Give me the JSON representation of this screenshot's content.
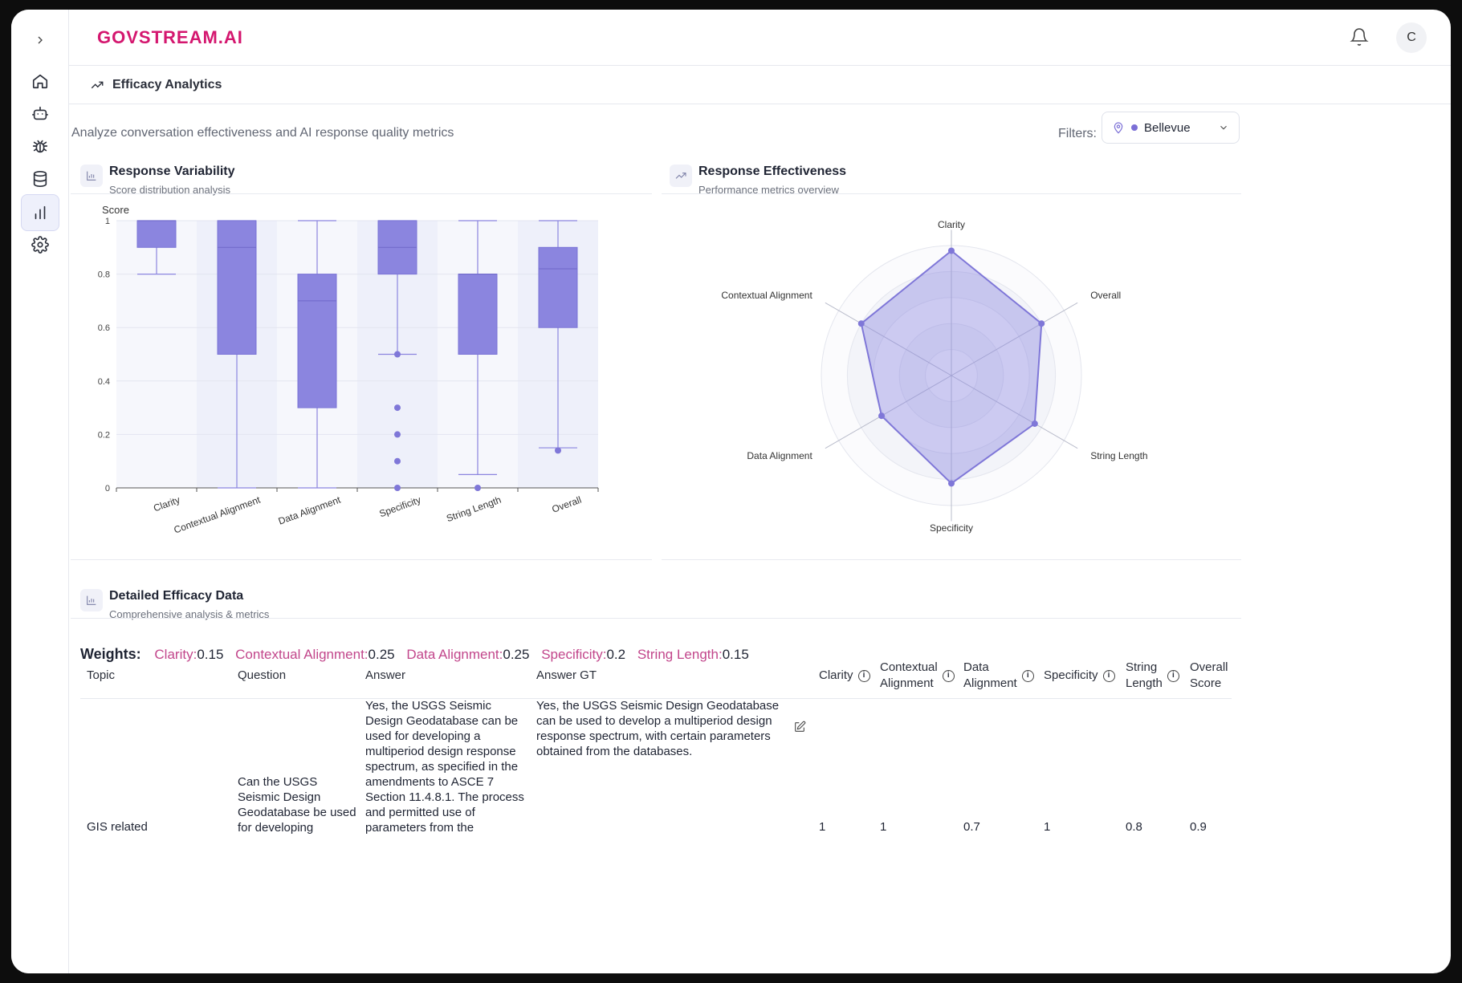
{
  "app": {
    "logo": "GOVSTREAM.AI",
    "avatar_initial": "C"
  },
  "sidebar": {
    "items": [
      {
        "icon": "home-icon"
      },
      {
        "icon": "bot-icon"
      },
      {
        "icon": "bug-icon"
      },
      {
        "icon": "database-icon"
      },
      {
        "icon": "bar-chart-icon",
        "active": true
      },
      {
        "icon": "gear-icon"
      }
    ]
  },
  "breadcrumb": {
    "title": "Efficacy Analytics"
  },
  "page": {
    "subtitle": "Analyze conversation effectiveness and AI response quality metrics",
    "filters_label": "Filters:",
    "filter_value": "Bellevue"
  },
  "variability_card": {
    "title": "Response Variability",
    "subtitle": "Score distribution analysis"
  },
  "effectiveness_card": {
    "title": "Response Effectiveness",
    "subtitle": "Performance metrics overview"
  },
  "detail_card": {
    "title": "Detailed Efficacy Data",
    "subtitle": "Comprehensive analysis & metrics"
  },
  "chart_data": [
    {
      "type": "box",
      "ylabel": "Score",
      "ylim": [
        0,
        1
      ],
      "yticks": [
        "0",
        "0.2",
        "0.4",
        "0.6",
        "0.8",
        "1"
      ],
      "categories": [
        "Clarity",
        "Contextual Alignment",
        "Data Alignment",
        "Specificity",
        "String Length",
        "Overall"
      ],
      "boxes": [
        {
          "min": 0.8,
          "q1": 0.9,
          "median": 1.0,
          "q3": 1.0,
          "max": 1.0,
          "outliers": []
        },
        {
          "min": 0,
          "q1": 0.5,
          "median": 0.9,
          "q3": 1.0,
          "max": 1.0,
          "outliers": []
        },
        {
          "min": 0,
          "q1": 0.3,
          "median": 0.7,
          "q3": 0.8,
          "max": 1.0,
          "outliers": []
        },
        {
          "min": 0.5,
          "q1": 0.8,
          "median": 0.9,
          "q3": 1.0,
          "max": 1.0,
          "outliers": [
            0.5,
            0.3,
            0.2,
            0.1,
            0
          ]
        },
        {
          "min": 0.05,
          "q1": 0.5,
          "median": 0.8,
          "q3": 0.8,
          "max": 1.0,
          "outliers": [
            0
          ]
        },
        {
          "min": 0.15,
          "q1": 0.6,
          "median": 0.82,
          "q3": 0.9,
          "max": 1.0,
          "outliers": [
            0.14
          ]
        }
      ],
      "color": "#8b85df"
    },
    {
      "type": "radar",
      "axes": [
        "Clarity",
        "Overall",
        "String Length",
        "Specificity",
        "Data Alignment",
        "Contextual Alignment"
      ],
      "values": [
        0.96,
        0.8,
        0.74,
        0.83,
        0.62,
        0.8
      ],
      "rmax": 1,
      "color": "#8b85df"
    }
  ],
  "weights": {
    "label": "Weights:",
    "items": [
      {
        "key": "Clarity:",
        "value": "0.15"
      },
      {
        "key": "Contextual Alignment:",
        "value": "0.25"
      },
      {
        "key": "Data Alignment:",
        "value": "0.25"
      },
      {
        "key": "Specificity:",
        "value": "0.2"
      },
      {
        "key": "String Length:",
        "value": "0.15"
      }
    ]
  },
  "table": {
    "headers": {
      "topic": "Topic",
      "question": "Question",
      "answer": "Answer",
      "answer_gt": "Answer GT",
      "clarity": "Clarity",
      "contextual_1": "Contextual",
      "contextual_2": "Alignment",
      "data_1": "Data",
      "data_2": "Alignment",
      "specificity": "Specificity",
      "string_1": "String",
      "string_2": "Length",
      "overall_1": "Overall",
      "overall_2": "Score"
    },
    "row": {
      "topic": "GIS related",
      "question": "Can the USGS Seismic Design Geodatabase be used for developing",
      "answer": "Yes, the USGS Seismic Design Geodatabase can be used for developing a multiperiod design response spectrum, as specified in the amendments to ASCE 7 Section 11.4.8.1. The process and permitted use of parameters from the geodatabase are detailed in",
      "answer_gt": "Yes, the USGS Seismic Design Geodatabase can be used to develop a multiperiod design response spectrum, with certain parameters obtained from the databases.",
      "clarity": "1",
      "contextual": "1",
      "data": "0.7",
      "specificity": "1",
      "string": "0.8",
      "overall": "0.9"
    }
  }
}
